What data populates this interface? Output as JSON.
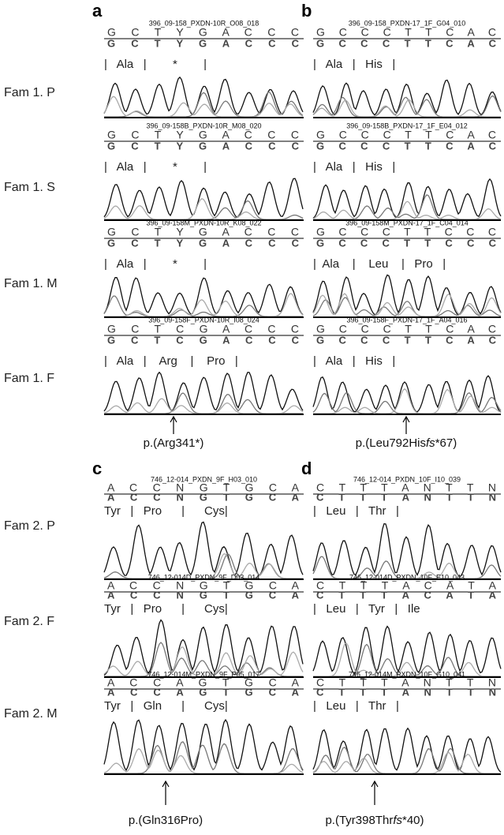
{
  "row_labels": {
    "family1": [
      "Fam 1. P",
      "Fam 1. S",
      "Fam 1. M",
      "Fam 1. F"
    ],
    "family2": [
      "Fam 2. P",
      "Fam 2. F",
      "Fam 2. M"
    ]
  },
  "panels": [
    {
      "label": "a",
      "mutation": [
        "p.(Arg341*)"
      ],
      "tracks": [
        {
          "sample": "396_09-158_PXDN-10R_O08_018",
          "bases": "G  C  T  Y  G  A  C  C  C",
          "calls": "G  C  T  Y  G  A  C  C  C",
          "amino": "|   Ala   |        *        |"
        },
        {
          "sample": "396_09-158B_PXDN-10R_M08_020",
          "bases": "G  C  T  Y  G  A  C  C  C",
          "calls": "G  C  T  Y  G  A  C  C  C",
          "amino": "|   Ala   |        *        |"
        },
        {
          "sample": "396_09-158M_PXDN-10R_K08_022",
          "bases": "G  C  T  Y  G  A  C  C  C",
          "calls": "G  C  T  Y  G  A  C  C  C",
          "amino": "|   Ala   |        *        |"
        },
        {
          "sample": "396_09-158F_PXDN-10R_I08_024",
          "bases": "G  C  T  C  G  A  C  C  C",
          "calls": "G  C  T  C  G  A  C  C  C",
          "amino": "|   Ala   |    Arg    |    Pro   |"
        }
      ]
    },
    {
      "label": "b",
      "mutation": [
        "p.(Leu792His",
        "fs",
        "*67)"
      ],
      "tracks": [
        {
          "sample": "396_09-158_PXDN-17_1F_G04_010",
          "bases": "G  C  C  C  T  T  C  A  C",
          "calls": "G  C  C  C  T  T  C  A  C",
          "amino": "|   Ala   |   His   |"
        },
        {
          "sample": "396_09-158B_PXDN-17_1F_E04_012",
          "bases": "G  C  C  C  T  T  C  A  C",
          "calls": "G  C  C  C  T  T  C  A  C",
          "amino": "|   Ala   |   His   |"
        },
        {
          "sample": "396_09-158M_PXDN-17_1F_C04_014",
          "bases": "G  C  C  C  T  T  C  C  C",
          "calls": "G  C  C  C  T  T  C  C  C",
          "amino": "|  Ala    |    Leu    |   Pro   |"
        },
        {
          "sample": "396_09-158F_PXDN-17_1F_A04_016",
          "bases": "G  C  C  C  T  T  C  A  C",
          "calls": "G  C  C  C  T  T  C  A  C",
          "amino": "|   Ala   |   His   |"
        }
      ]
    },
    {
      "label": "c",
      "mutation": [
        "p.(Gln316Pro)"
      ],
      "tracks": [
        {
          "sample": "746_12-014_PXDN_9F_H03_010",
          "bases": "A  C  C  N  G  T  G  C  A",
          "calls": "A  C  C  N  G  T  G  C  A",
          "amino": "Tyr   |   Pro      |      Cys|"
        },
        {
          "sample": "746_12-014D_PXDN_9F_D03_014",
          "bases": "A  C  C  N  G  T  G  C  A",
          "calls": "A  C  C  N  G  T  G  C  A",
          "amino": "Tyr   |   Pro      |      Cys|"
        },
        {
          "sample": "746_12-014M_PXDN_9F_P05_017",
          "bases": "A  C  C  A  G  T  G  C  A",
          "calls": "A  C  C  A  G  T  G  C  A",
          "amino": "Tyr   |   Gln      |      Cys|"
        }
      ]
    },
    {
      "label": "d",
      "mutation": [
        "p.(Tyr398Thr",
        "fs",
        "*40)"
      ],
      "tracks": [
        {
          "sample": "746_12-014_PXDN_10F_I10_039",
          "bases": "C  T  T  T  A  N  T  T  N",
          "calls": "C  T  T  T  A  N  T  T  N",
          "amino": "|   Leu   |   Thr   |"
        },
        {
          "sample": "746_12-014D_PXDN_10F_E10_043",
          "bases": "C  T  T  T  A  C  A  T  A",
          "calls": "C  T  T  T  A  C  A  T  A",
          "amino": "|   Leu   |   Tyr   |   Ile"
        },
        {
          "sample": "746_12-014M_PXDN_10F_G10_041",
          "bases": "C  T  T  T  A  N  T  T  N",
          "calls": "C  T  T  T  A  N  T  T  N",
          "amino": "|   Leu   |   Thr   |"
        }
      ]
    }
  ]
}
